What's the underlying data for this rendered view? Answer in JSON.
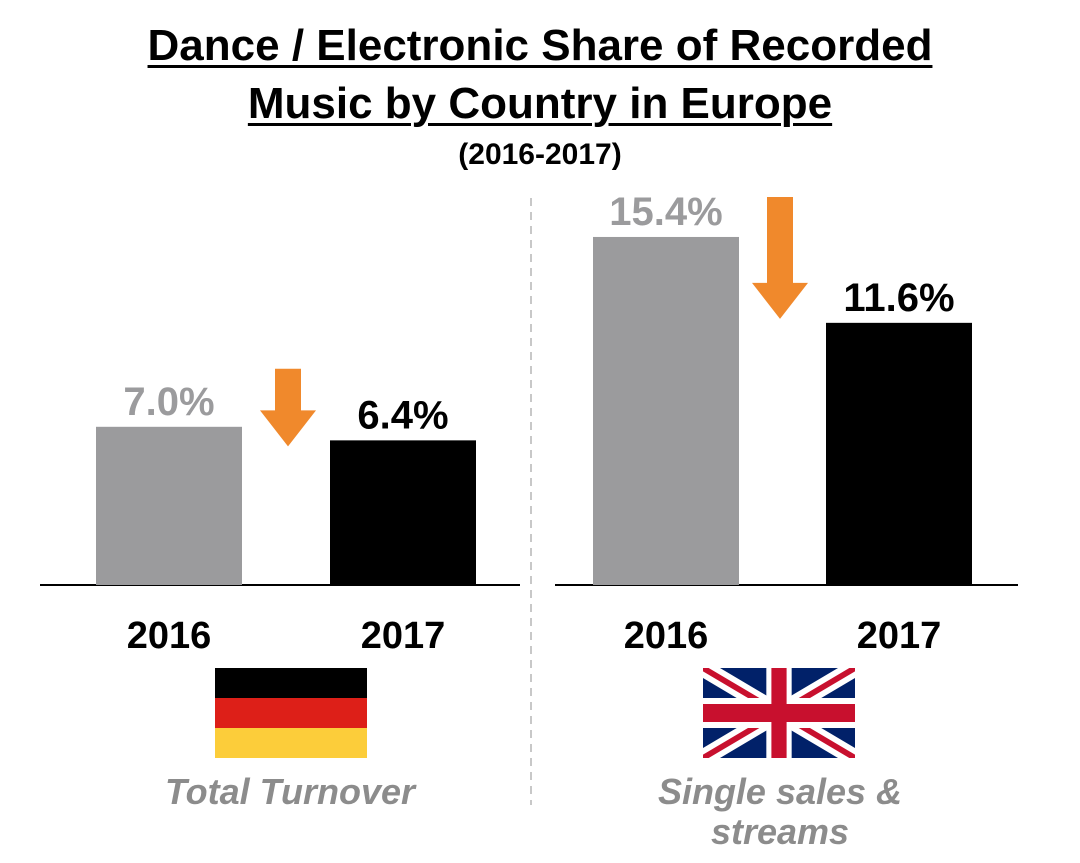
{
  "header": {
    "title_line1": "Dance / Electronic Share of Recorded",
    "title_line2": "Music by Country in Europe",
    "subtitle": "(2016-2017)"
  },
  "colors": {
    "bar_2016": "#9b9b9d",
    "bar_2017": "#000000",
    "label_2016": "#9b9b9d",
    "arrow": "#f0892c",
    "divider": "#c8c8c8"
  },
  "chart_data": [
    {
      "type": "bar",
      "country_flag": "germany-flag-icon",
      "caption": "Total Turnover",
      "categories": [
        "2016",
        "2017"
      ],
      "values": [
        7.0,
        6.4
      ],
      "data_labels": [
        "7.0%",
        "6.4%"
      ],
      "trend": "down",
      "grid": false
    },
    {
      "type": "bar",
      "country_flag": "uk-flag-icon",
      "caption": "Single sales & streams",
      "categories": [
        "2016",
        "2017"
      ],
      "values": [
        15.4,
        11.6
      ],
      "data_labels": [
        "15.4%",
        "11.6%"
      ],
      "trend": "down",
      "grid": false
    }
  ]
}
